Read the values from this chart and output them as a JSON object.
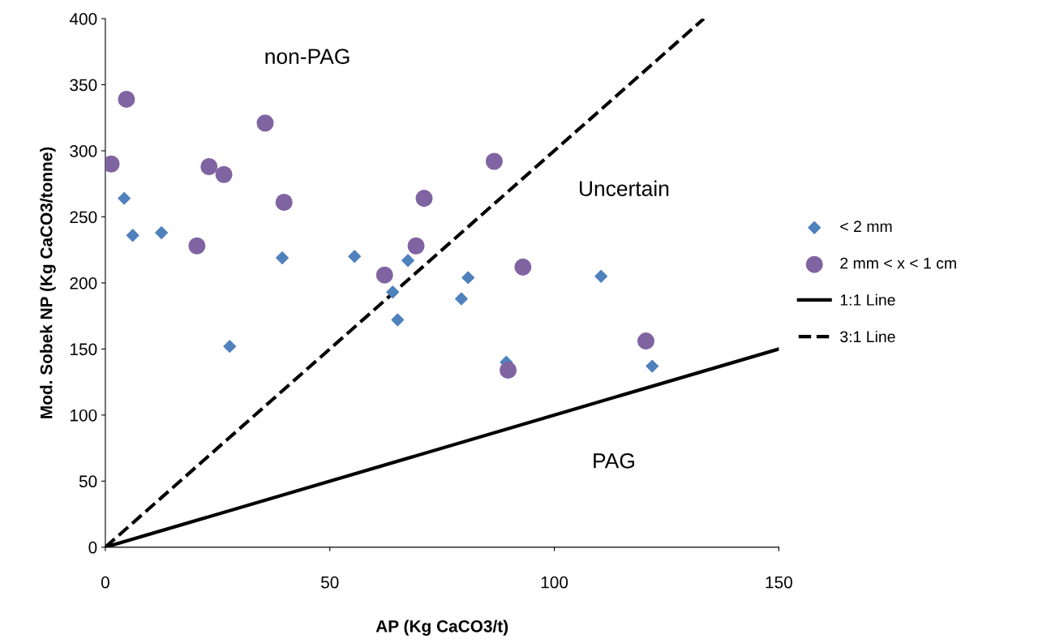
{
  "chart_data": {
    "type": "scatter",
    "xlabel": "AP (Kg CaCO3/t)",
    "ylabel": "Mod. Sobek NP (Kg CaCO3/tonne)",
    "xlim": [
      0,
      150
    ],
    "xticks": [
      0,
      50,
      100,
      150
    ],
    "ylim": [
      0,
      400
    ],
    "yticks": [
      0,
      50,
      100,
      150,
      200,
      250,
      300,
      350,
      400
    ],
    "grid": false,
    "legend": "right",
    "series": [
      {
        "name": "< 2 mm",
        "marker": "diamond",
        "color": "#4f81bd",
        "x": [
          4.2,
          6.1,
          12.5,
          27.7,
          39.4,
          55.5,
          64,
          65.1,
          67.4,
          80.8,
          79.3,
          89.3,
          110.4,
          121.8
        ],
        "values": [
          264,
          236,
          238,
          152,
          219,
          220,
          193,
          172,
          217,
          204,
          188,
          140,
          205,
          137
        ]
      },
      {
        "name": "2 mm < x < 1 cm",
        "marker": "circle",
        "color": "#8064a2",
        "x": [
          1.3,
          4.7,
          20.4,
          23.1,
          26.4,
          35.6,
          39.8,
          62.2,
          69.2,
          71,
          86.6,
          93,
          89.7,
          120.4
        ],
        "values": [
          290,
          339,
          228,
          288,
          282,
          321,
          261,
          206,
          228,
          264,
          292,
          212,
          134,
          156
        ]
      },
      {
        "name": "1:1 Line",
        "type": "line",
        "marker": "none",
        "line_style": "solid",
        "color": "#000000",
        "x": [
          0,
          150
        ],
        "values": [
          0,
          150
        ]
      },
      {
        "name": "3:1 Line",
        "type": "line",
        "marker": "none",
        "line_style": "dashed",
        "color": "#000000",
        "x": [
          0,
          133.3
        ],
        "values": [
          0,
          400
        ]
      }
    ],
    "annotations": [
      "non-PAG",
      "Uncertain",
      "PAG"
    ]
  }
}
